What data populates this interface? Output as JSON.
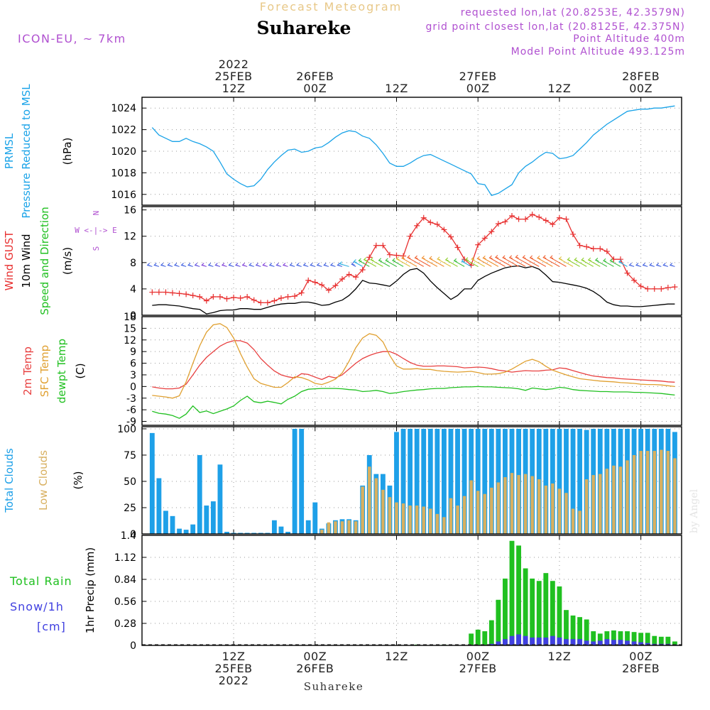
{
  "colors": {
    "pressure": "#1aa3e8",
    "gust": "#e83030",
    "wind": "#000000",
    "temp2m": "#e84040",
    "sfc": "#e0a030",
    "dewpt": "#20c020",
    "cloud_total": "#1ea0e8",
    "cloud_low": "#d8b060",
    "rain": "#20c020",
    "snow": "#4040e0",
    "purple": "#b050d0"
  },
  "header": {
    "subtitle": "Forecast Meteogram",
    "title": "Suhareke",
    "model": "ICON-EU, ~ 7km",
    "requested": "requested lon,lat (20.8253E, 42.3579N)",
    "grid": "grid point closest lon,lat (20.8125E, 42.375N)",
    "point_alt": "Point Altitude 400m",
    "model_alt": "Model Point Altitude 493.125m"
  },
  "footer": {
    "location": "Suhareke",
    "credit": "by Angel"
  },
  "time_axis": {
    "top": [
      {
        "t": 12,
        "lines": [
          "2022",
          "25FEB",
          "12Z"
        ]
      },
      {
        "t": 24,
        "lines": [
          "26FEB",
          "00Z"
        ]
      },
      {
        "t": 36,
        "lines": [
          "12Z"
        ]
      },
      {
        "t": 48,
        "lines": [
          "27FEB",
          "00Z"
        ]
      },
      {
        "t": 60,
        "lines": [
          "12Z"
        ]
      },
      {
        "t": 72,
        "lines": [
          "28FEB",
          "00Z"
        ]
      }
    ],
    "bottom": [
      {
        "t": 12,
        "lines": [
          "12Z",
          "25FEB",
          "2022"
        ]
      },
      {
        "t": 24,
        "lines": [
          "00Z",
          "26FEB"
        ]
      },
      {
        "t": 36,
        "lines": [
          "12Z"
        ]
      },
      {
        "t": 48,
        "lines": [
          "00Z",
          "27FEB"
        ]
      },
      {
        "t": 60,
        "lines": [
          "12Z"
        ]
      },
      {
        "t": 72,
        "lines": [
          "00Z",
          "28FEB"
        ]
      }
    ]
  },
  "chart_data": [
    {
      "id": "pressure",
      "type": "line",
      "side_labels": [
        {
          "text": "PRMSL",
          "color": "#1aa3e8"
        },
        {
          "text": "Pressure Reduced to MSL",
          "color": "#1aa3e8"
        },
        {
          "text": "(hPa)",
          "color": "#000000"
        }
      ],
      "ylim": [
        1015,
        1025
      ],
      "yticks": [
        1016,
        1018,
        1020,
        1022,
        1024
      ],
      "series": [
        {
          "name": "PRMSL",
          "values": [
            1022.2,
            1021.5,
            1021.2,
            1020.9,
            1020.9,
            1021.2,
            1020.9,
            1020.7,
            1020.4,
            1020.0,
            1019.0,
            1017.9,
            1017.4,
            1017.0,
            1016.7,
            1016.8,
            1017.4,
            1018.3,
            1019.0,
            1019.6,
            1020.1,
            1020.2,
            1019.9,
            1020.0,
            1020.3,
            1020.4,
            1020.8,
            1021.3,
            1021.7,
            1021.9,
            1021.8,
            1021.4,
            1021.2,
            1020.6,
            1019.8,
            1018.9,
            1018.6,
            1018.6,
            1018.9,
            1019.3,
            1019.6,
            1019.7,
            1019.4,
            1019.1,
            1018.8,
            1018.5,
            1018.2,
            1017.9,
            1017.0,
            1016.9,
            1015.9,
            1016.1,
            1016.5,
            1016.9,
            1018.0,
            1018.6,
            1019.0,
            1019.5,
            1019.9,
            1019.8,
            1019.3,
            1019.4,
            1019.6,
            1020.2,
            1020.8,
            1021.5,
            1022.0,
            1022.5,
            1022.9,
            1023.3,
            1023.7,
            1023.8,
            1023.9,
            1023.9,
            1024.0,
            1024.0,
            1024.1,
            1024.2
          ]
        }
      ]
    },
    {
      "id": "wind",
      "type": "line",
      "side_labels": [
        {
          "text": "Wind GUST",
          "color": "#e83030"
        },
        {
          "text": "10m Wind",
          "color": "#000000"
        },
        {
          "text": "Speed and Direction",
          "color": "#20c020"
        },
        {
          "text": "(m/s)",
          "color": "#000000"
        }
      ],
      "compass": [
        "N",
        "W <-|-> E",
        "S"
      ],
      "ylim": [
        0,
        16.5
      ],
      "yticks": [
        0,
        4,
        8,
        12,
        16
      ],
      "series": [
        {
          "name": "Wind GUST",
          "values": [
            3.5,
            3.5,
            3.5,
            3.4,
            3.3,
            3.2,
            3.0,
            2.8,
            2.2,
            2.8,
            2.8,
            2.5,
            2.7,
            2.6,
            2.8,
            2.3,
            1.9,
            1.9,
            2.2,
            2.6,
            2.8,
            2.9,
            3.4,
            5.3,
            5.0,
            4.6,
            3.8,
            4.5,
            5.5,
            6.2,
            5.8,
            6.9,
            8.8,
            10.6,
            10.6,
            9.2,
            9.1,
            9.0,
            12.0,
            13.6,
            14.8,
            14.1,
            13.8,
            13.0,
            11.9,
            10.3,
            8.5,
            7.6,
            10.7,
            11.7,
            12.7,
            13.9,
            14.2,
            15.1,
            14.6,
            14.6,
            15.3,
            14.9,
            14.4,
            13.8,
            14.8,
            14.6,
            12.3,
            10.6,
            10.4,
            10.1,
            10.1,
            9.7,
            8.5,
            8.5,
            6.4,
            5.3,
            4.4,
            4.0,
            4.0,
            4.0,
            4.2,
            4.3
          ]
        },
        {
          "name": "10m Wind",
          "values": [
            1.5,
            1.6,
            1.6,
            1.5,
            1.4,
            1.2,
            1.0,
            0.9,
            0.2,
            0.4,
            0.7,
            0.8,
            0.8,
            1.0,
            1.0,
            0.9,
            0.9,
            1.2,
            1.5,
            1.7,
            1.8,
            1.8,
            2.0,
            2.0,
            1.8,
            1.5,
            1.6,
            2.0,
            2.3,
            3.0,
            4.0,
            5.3,
            4.9,
            4.8,
            4.6,
            4.4,
            5.2,
            6.2,
            6.9,
            7.1,
            6.4,
            5.2,
            4.2,
            3.3,
            2.4,
            3.0,
            4.0,
            4.0,
            5.3,
            5.9,
            6.4,
            6.8,
            7.2,
            7.4,
            7.5,
            7.2,
            7.4,
            7.0,
            6.1,
            5.1,
            5.0,
            4.8,
            4.6,
            4.4,
            4.1,
            3.6,
            2.9,
            2.0,
            1.6,
            1.4,
            1.4,
            1.3,
            1.3,
            1.4,
            1.5,
            1.6,
            1.7,
            1.7
          ]
        }
      ]
    },
    {
      "id": "temperature",
      "type": "line",
      "side_labels": [
        {
          "text": "2m Temp",
          "color": "#e84040"
        },
        {
          "text": "SFC Temp",
          "color": "#e0a030"
        },
        {
          "text": "dewpt Temp",
          "color": "#20c020"
        },
        {
          "text": "(C)",
          "color": "#000000"
        }
      ],
      "ylim": [
        -10,
        18
      ],
      "yticks": [
        -9,
        -6,
        -3,
        0,
        3,
        6,
        9,
        12,
        15,
        18
      ],
      "series": [
        {
          "name": "2m Temp",
          "values": [
            -0.1,
            -0.4,
            -0.6,
            -0.6,
            -0.4,
            0.6,
            3.0,
            5.5,
            7.5,
            9.0,
            10.4,
            11.3,
            11.8,
            11.8,
            11.2,
            9.5,
            7.2,
            5.5,
            4.0,
            3.0,
            2.5,
            2.2,
            3.3,
            3.1,
            2.4,
            1.8,
            2.6,
            2.2,
            3.0,
            4.5,
            6.0,
            7.2,
            8.0,
            8.6,
            9.0,
            9.0,
            8.3,
            7.2,
            6.2,
            5.5,
            5.2,
            5.2,
            5.3,
            5.3,
            5.2,
            5.1,
            4.8,
            4.9,
            5.0,
            4.9,
            4.6,
            4.2,
            4.0,
            3.7,
            3.9,
            4.1,
            4.0,
            4.0,
            4.2,
            4.3,
            4.8,
            4.6,
            4.1,
            3.6,
            3.1,
            2.7,
            2.5,
            2.3,
            2.2,
            2.0,
            1.9,
            1.8,
            1.7,
            1.6,
            1.5,
            1.4,
            1.2,
            1.1
          ]
        },
        {
          "name": "SFC Temp",
          "values": [
            -2.3,
            -2.5,
            -2.7,
            -3.0,
            -2.4,
            1.2,
            6.0,
            10.5,
            14.0,
            15.9,
            16.2,
            15.2,
            12.5,
            8.5,
            5.0,
            2.0,
            0.8,
            0.3,
            -0.2,
            -0.2,
            1.0,
            2.5,
            2.3,
            1.7,
            0.8,
            0.5,
            1.1,
            1.9,
            3.5,
            6.5,
            10.0,
            12.5,
            13.6,
            13.2,
            11.5,
            8.0,
            5.3,
            4.5,
            4.5,
            4.6,
            4.4,
            4.4,
            4.1,
            3.9,
            3.8,
            3.7,
            3.8,
            3.9,
            3.6,
            3.2,
            3.2,
            3.3,
            3.7,
            4.5,
            5.5,
            6.5,
            7.0,
            6.4,
            5.2,
            4.2,
            3.6,
            3.0,
            2.5,
            2.0,
            1.8,
            1.6,
            1.4,
            1.3,
            1.2,
            1.0,
            0.9,
            0.8,
            0.6,
            0.5,
            0.5,
            0.4,
            0.2,
            0.0
          ]
        },
        {
          "name": "dewpt Temp",
          "values": [
            -6.4,
            -6.9,
            -7.1,
            -7.5,
            -8.2,
            -7.1,
            -5.0,
            -6.7,
            -6.3,
            -7.0,
            -6.4,
            -5.8,
            -5.0,
            -3.6,
            -2.5,
            -3.9,
            -4.2,
            -3.8,
            -4.1,
            -4.5,
            -3.3,
            -2.5,
            -1.3,
            -0.7,
            -0.6,
            -0.5,
            -0.5,
            -0.5,
            -0.6,
            -0.8,
            -0.9,
            -1.3,
            -1.2,
            -1.0,
            -1.3,
            -1.8,
            -1.6,
            -1.3,
            -1.1,
            -0.9,
            -0.8,
            -0.6,
            -0.5,
            -0.5,
            -0.3,
            -0.2,
            -0.1,
            -0.1,
            0.0,
            -0.1,
            -0.1,
            -0.2,
            -0.3,
            -0.4,
            -0.6,
            -1.0,
            -0.4,
            -0.6,
            -0.8,
            -0.6,
            -0.2,
            -0.4,
            -0.8,
            -1.0,
            -1.1,
            -1.2,
            -1.3,
            -1.3,
            -1.4,
            -1.4,
            -1.4,
            -1.5,
            -1.5,
            -1.6,
            -1.7,
            -1.8,
            -2.0,
            -2.2
          ]
        }
      ]
    },
    {
      "id": "clouds",
      "type": "bar",
      "side_labels": [
        {
          "text": "Total Clouds",
          "color": "#1ea0e8"
        },
        {
          "text": "Low Clouds",
          "color": "#d8b060"
        },
        {
          "text": "(%)",
          "color": "#000000"
        }
      ],
      "ylim": [
        0,
        102
      ],
      "yticks": [
        0,
        25,
        50,
        75,
        100
      ],
      "series": [
        {
          "name": "Total Clouds",
          "values": [
            96,
            53,
            22,
            17,
            5,
            4,
            9,
            75,
            27,
            31,
            66,
            2,
            1,
            1,
            1,
            1,
            1,
            1,
            13,
            7,
            2,
            100,
            100,
            13,
            30,
            5,
            10,
            13,
            14,
            14,
            13,
            46,
            75,
            57,
            57,
            46,
            97,
            100,
            100,
            100,
            100,
            100,
            100,
            100,
            100,
            100,
            100,
            100,
            100,
            100,
            100,
            100,
            100,
            100,
            100,
            100,
            100,
            100,
            100,
            100,
            100,
            100,
            100,
            100,
            99,
            100,
            100,
            100,
            100,
            100,
            100,
            100,
            100,
            100,
            100,
            100,
            100,
            97
          ]
        },
        {
          "name": "Low Clouds",
          "values": [
            0,
            0,
            0,
            0,
            0,
            0,
            0,
            0,
            0,
            0,
            0,
            0,
            0,
            0,
            0,
            0,
            0,
            0,
            0,
            0,
            0,
            0,
            0,
            0,
            0,
            4,
            11,
            12,
            12,
            13,
            12,
            45,
            64,
            53,
            42,
            35,
            30,
            29,
            27,
            27,
            26,
            24,
            19,
            16,
            34,
            27,
            36,
            51,
            41,
            38,
            44,
            49,
            54,
            58,
            56,
            57,
            55,
            52,
            46,
            48,
            43,
            39,
            24,
            22,
            52,
            56,
            57,
            62,
            65,
            64,
            70,
            75,
            79,
            79,
            79,
            80,
            79,
            72
          ]
        }
      ]
    },
    {
      "id": "precip",
      "type": "bar",
      "side_labels": [
        {
          "text": "1hr Precip (mm)",
          "color": "#000000"
        }
      ],
      "legend": [
        {
          "text": "Total  Rain",
          "color": "#20c020"
        },
        {
          "text": "Snow/1h",
          "color": "#4040e0"
        },
        {
          "text": "[cm]",
          "color": "#4040e0"
        }
      ],
      "ylim": [
        0,
        1.4
      ],
      "yticks": [
        0,
        0.28,
        0.56,
        0.84,
        1.12,
        1.4
      ],
      "yticklabels": [
        "0",
        "0.28",
        "0.56",
        "0.84",
        "1.12",
        "1.4"
      ],
      "series": [
        {
          "name": "Total Rain",
          "values": [
            0,
            0,
            0,
            0,
            0,
            0,
            0,
            0,
            0,
            0,
            0,
            0,
            0,
            0,
            0,
            0,
            0,
            0,
            0,
            0,
            0,
            0,
            0,
            0,
            0,
            0,
            0,
            0,
            0,
            0,
            0,
            0,
            0,
            0,
            0,
            0,
            0,
            0,
            0,
            0.01,
            0,
            0,
            0,
            0.01,
            0,
            0,
            0,
            0.15,
            0.2,
            0.18,
            0.32,
            0.58,
            0.85,
            1.33,
            1.27,
            0.98,
            0.85,
            0.82,
            0.92,
            0.82,
            0.75,
            0.45,
            0.38,
            0.36,
            0.33,
            0.18,
            0.15,
            0.18,
            0.19,
            0.18,
            0.18,
            0.17,
            0.16,
            0.16,
            0.12,
            0.11,
            0.11,
            0.05
          ]
        },
        {
          "name": "Snow/1h",
          "values": [
            0,
            0,
            0,
            0,
            0,
            0,
            0,
            0,
            0,
            0,
            0,
            0,
            0,
            0,
            0,
            0,
            0,
            0,
            0,
            0,
            0,
            0,
            0,
            0,
            0,
            0,
            0,
            0,
            0,
            0,
            0,
            0,
            0,
            0,
            0,
            0,
            0,
            0,
            0,
            0,
            0,
            0,
            0,
            0,
            0,
            0,
            0,
            0,
            0,
            0,
            0.02,
            0.05,
            0.08,
            0.12,
            0.14,
            0.12,
            0.1,
            0.1,
            0.1,
            0.12,
            0.1,
            0.08,
            0.08,
            0.08,
            0.06,
            0.05,
            0.06,
            0.08,
            0.07,
            0.07,
            0.06,
            0.05,
            0.04,
            0.03,
            0.02,
            0.02,
            0.02,
            0.01
          ]
        }
      ]
    }
  ]
}
